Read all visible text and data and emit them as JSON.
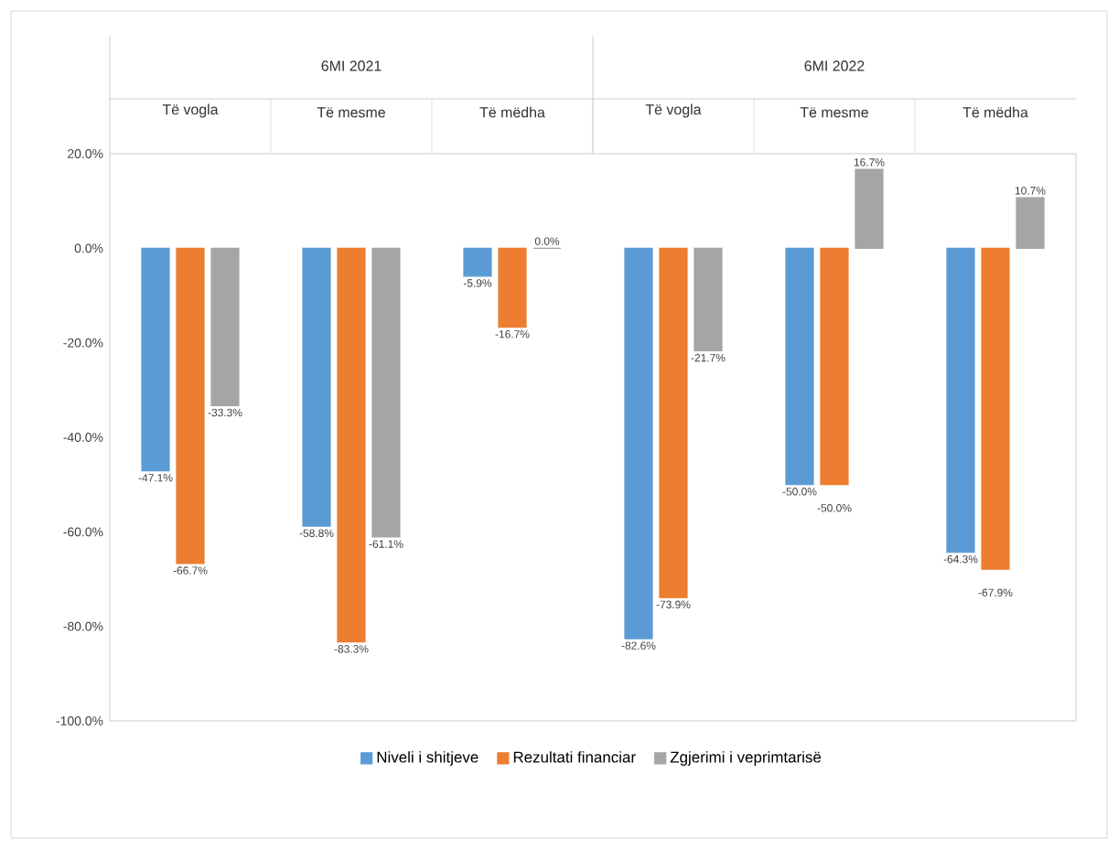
{
  "chart_data": {
    "type": "bar",
    "categories": [
      "Të vogla",
      "Të mesme",
      "Të mëdha",
      "Të vogla",
      "Të mesme",
      "Të mëdha"
    ],
    "annotations": [
      "6MI 2021",
      "6MI 2022"
    ],
    "series": [
      {
        "name": "Niveli i shitjeve",
        "color": "#5b9bd5",
        "values": [
          -47.1,
          -58.8,
          -5.9,
          -82.6,
          -50.0,
          -64.3
        ],
        "value_labels": [
          "-47.1%",
          "-58.8%",
          "-5.9%",
          "-82.6%",
          "-50.0%",
          "-64.3%"
        ]
      },
      {
        "name": "Rezultati financiar",
        "color": "#ed7d31",
        "values": [
          -66.7,
          -83.3,
          -16.7,
          -73.9,
          -50.0,
          -67.9
        ],
        "value_labels": [
          "-66.7%",
          "-83.3%",
          "-16.7%",
          "-73.9%",
          "-50.0%",
          "-67.9%"
        ]
      },
      {
        "name": "Zgjerimi i veprimtarisë",
        "color": "#a5a5a5",
        "values": [
          -33.3,
          -61.1,
          0.0,
          -21.7,
          16.7,
          10.7
        ],
        "value_labels": [
          "-33.3%",
          "-61.1%",
          "0.0%",
          "-21.7%",
          "16.7%",
          "10.7%"
        ]
      }
    ],
    "ylim": [
      -100,
      20
    ],
    "yticks": [
      {
        "value": -100,
        "label": "-100.0%"
      },
      {
        "value": -80,
        "label": "-80.0%"
      },
      {
        "value": -60,
        "label": "-60.0%"
      },
      {
        "value": -40,
        "label": "-40.0%"
      },
      {
        "value": -20,
        "label": "-20.0%"
      },
      {
        "value": 0,
        "label": "0.0%"
      },
      {
        "value": 20,
        "label": "20.0%"
      }
    ],
    "grid": false,
    "legend": "bottom"
  }
}
